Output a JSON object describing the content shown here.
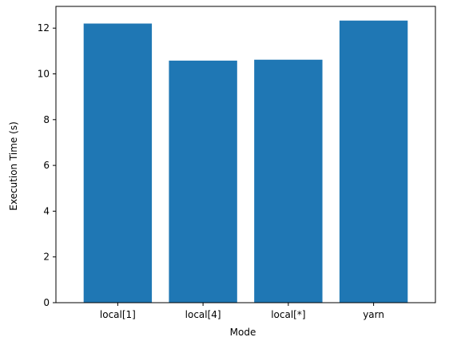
{
  "chart_data": {
    "type": "bar",
    "title": "",
    "xlabel": "Mode",
    "ylabel": "Execution Time (s)",
    "categories": [
      "local[1]",
      "local[4]",
      "local[*]",
      "yarn"
    ],
    "values": [
      12.2,
      10.58,
      10.62,
      12.33
    ],
    "ylim": [
      0,
      12.95
    ],
    "yticks": [
      0,
      2,
      4,
      6,
      8,
      10,
      12
    ],
    "ytick_labels": [
      "0",
      "2",
      "4",
      "6",
      "8",
      "10",
      "12"
    ],
    "grid": false,
    "legend": "none",
    "bar_color": "#1f77b4"
  }
}
